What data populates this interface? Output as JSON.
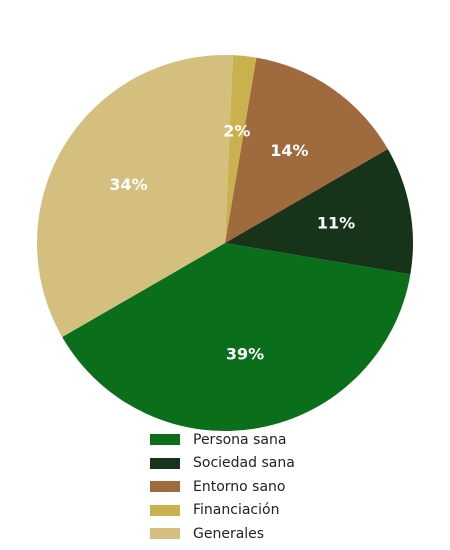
{
  "chart_data": {
    "type": "pie",
    "slices": [
      {
        "name": "Persona sana",
        "value": 39,
        "label": "39%",
        "color": "#0b6e1a"
      },
      {
        "name": "Sociedad sana",
        "value": 11,
        "label": "11%",
        "color": "#17341a"
      },
      {
        "name": "Entorno sano",
        "value": 14,
        "label": "14%",
        "color": "#a06a3f"
      },
      {
        "name": "Financiación",
        "value": 2,
        "label": "2%",
        "color": "#c9b24e"
      },
      {
        "name": "Generales",
        "value": 34,
        "label": "34%",
        "color": "#d4bf7e"
      }
    ],
    "start_angle_deg": 210,
    "direction": "counterclockwise",
    "legend_position": "bottom"
  }
}
